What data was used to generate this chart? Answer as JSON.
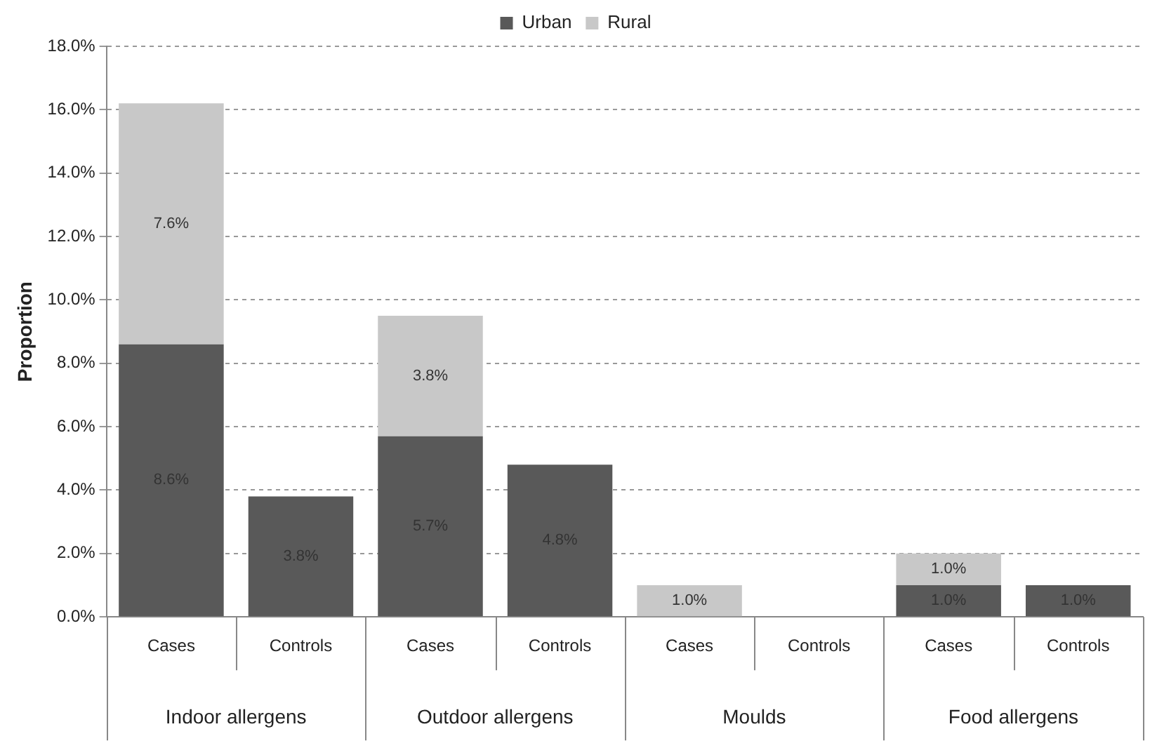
{
  "chart_data": {
    "type": "bar",
    "stacked": true,
    "ylabel": "Proportion",
    "categories": [
      "Cases",
      "Controls",
      "Cases",
      "Controls",
      "Cases",
      "Controls",
      "Cases",
      "Controls"
    ],
    "series": [
      {
        "name": "Urban",
        "color": "#595959",
        "values": [
          8.6,
          3.8,
          5.7,
          4.8,
          null,
          null,
          1.0,
          1.0
        ],
        "value_labels": [
          "8.6%",
          "3.8%",
          "5.7%",
          "4.8%",
          null,
          null,
          "1.0%",
          "1.0%"
        ]
      },
      {
        "name": "Rural",
        "color": "#c8c8c8",
        "values": [
          7.6,
          null,
          3.8,
          null,
          1.0,
          null,
          1.0,
          null
        ],
        "value_labels": [
          "7.6%",
          null,
          "3.8%",
          null,
          "1.0%",
          null,
          "1.0%",
          null
        ]
      }
    ],
    "ylim": [
      0,
      18
    ],
    "yticks": [
      {
        "value": 0,
        "label": "0.0%"
      },
      {
        "value": 2,
        "label": "2.0%"
      },
      {
        "value": 4,
        "label": "4.0%"
      },
      {
        "value": 6,
        "label": "6.0%"
      },
      {
        "value": 8,
        "label": "8.0%"
      },
      {
        "value": 10,
        "label": "10.0%"
      },
      {
        "value": 12,
        "label": "12.0%"
      },
      {
        "value": 14,
        "label": "14.0%"
      },
      {
        "value": 16,
        "label": "16.0%"
      },
      {
        "value": 18,
        "label": "18.0%"
      }
    ],
    "annotations": [
      "Indoor allergens",
      "Outdoor allergens",
      "Moulds",
      "Food allergens"
    ],
    "grid": "y",
    "legend": "top"
  }
}
